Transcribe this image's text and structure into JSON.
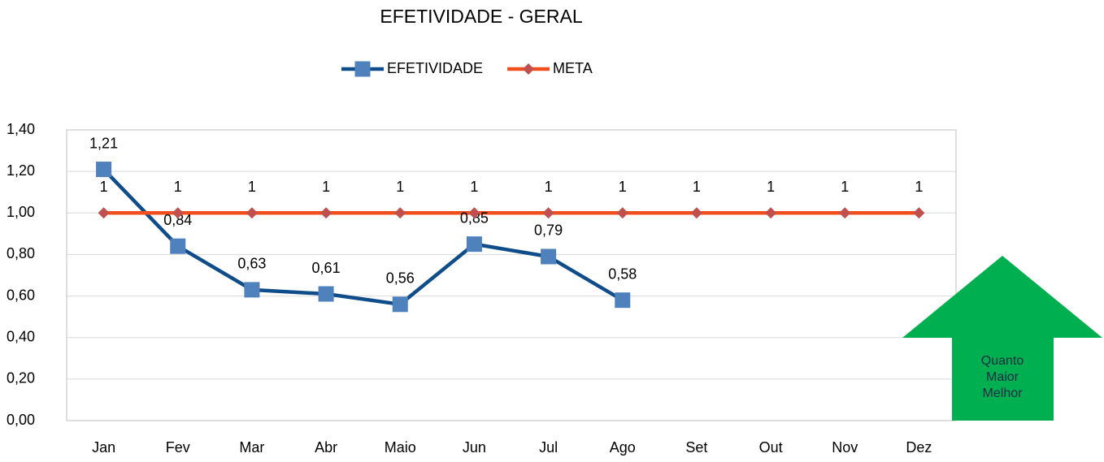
{
  "chart_data": {
    "type": "line",
    "title": "EFETIVIDADE - GERAL",
    "categories": [
      "Jan",
      "Fev",
      "Mar",
      "Abr",
      "Maio",
      "Jun",
      "Jul",
      "Ago",
      "Set",
      "Out",
      "Nov",
      "Dez"
    ],
    "series": [
      {
        "name": "EFETIVIDADE",
        "color": "#0f4c8a",
        "marker": "square",
        "marker_color": "#4f81bd",
        "values": [
          1.21,
          0.84,
          0.63,
          0.61,
          0.56,
          0.85,
          0.79,
          0.58,
          null,
          null,
          null,
          null
        ],
        "value_labels": [
          "1,21",
          "0,84",
          "0,63",
          "0,61",
          "0,56",
          "0,85",
          "0,79",
          "0,58",
          null,
          null,
          null,
          null
        ]
      },
      {
        "name": "META",
        "color": "#f04e1c",
        "marker": "diamond",
        "marker_color": "#c0504d",
        "values": [
          1,
          1,
          1,
          1,
          1,
          1,
          1,
          1,
          1,
          1,
          1,
          1
        ]
      }
    ],
    "ylim": [
      0,
      1.4
    ],
    "yticks": [
      {
        "value": 0,
        "label": "0,00"
      },
      {
        "value": 0.2,
        "label": "0,20"
      },
      {
        "value": 0.4,
        "label": "0,40"
      },
      {
        "value": 0.6,
        "label": "0,60"
      },
      {
        "value": 0.8,
        "label": "0,80"
      },
      {
        "value": 1,
        "label": "1,00"
      },
      {
        "value": 1.2,
        "label": "1,20"
      },
      {
        "value": 1.4,
        "label": "1,40"
      }
    ],
    "grid": true,
    "legend": "top",
    "annotation": [
      "Quanto",
      "Maior",
      "Melhor"
    ],
    "annotation_color": "#00b050"
  }
}
